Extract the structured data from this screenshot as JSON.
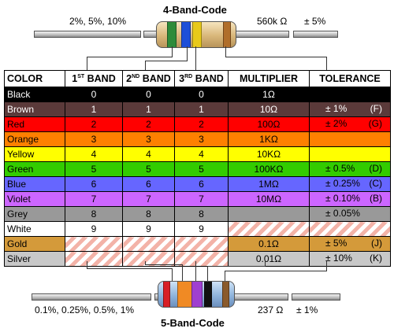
{
  "top": {
    "title": "4-Band-Code",
    "left_label": "2%, 5%, 10%",
    "value_label": "560k Ω",
    "tolerance_label": "± 5%",
    "bands": [
      "#2e8b3a",
      "#1d4fd8",
      "#e8c91a",
      "#b06e2a"
    ]
  },
  "bottom": {
    "title": "5-Band-Code",
    "left_label": "0.1%, 0.25%, 0.5%, 1%",
    "value_label": "237 Ω",
    "tolerance_label": "± 1%",
    "bands": [
      "#d81f26",
      "#f08a24",
      "#a040d0",
      "#111111",
      "#8a5a2b"
    ]
  },
  "table": {
    "headers": {
      "color": "COLOR",
      "band1_num": "1",
      "band1_sup": "ST",
      "band1_word": " BAND",
      "band2_num": "2",
      "band2_sup": "ND",
      "band2_word": " BAND",
      "band3_num": "3",
      "band3_sup": "RD",
      "band3_word": " BAND",
      "multiplier": "MULTIPLIER",
      "tolerance": "TOLERANCE"
    },
    "rows": [
      {
        "name": "Black",
        "bg": "#000000",
        "fg": "#ffffff",
        "b1": "0",
        "b2": "0",
        "b3": "0",
        "mult": "1Ω",
        "tol": "",
        "code": ""
      },
      {
        "name": "Brown",
        "bg": "#5b3a3a",
        "fg": "#ffffff",
        "b1": "1",
        "b2": "1",
        "b3": "1",
        "mult": "10Ω",
        "tol": "± 1%",
        "code": "(F)"
      },
      {
        "name": "Red",
        "bg": "#ff0000",
        "fg": "#000000",
        "b1": "2",
        "b2": "2",
        "b3": "2",
        "mult": "100Ω",
        "tol": "± 2%",
        "code": "(G)"
      },
      {
        "name": "Orange",
        "bg": "#ff8000",
        "fg": "#000000",
        "b1": "3",
        "b2": "3",
        "b3": "3",
        "mult": "1KΩ",
        "tol": "",
        "code": ""
      },
      {
        "name": "Yellow",
        "bg": "#ffff00",
        "fg": "#000000",
        "b1": "4",
        "b2": "4",
        "b3": "4",
        "mult": "10KΩ",
        "tol": "",
        "code": ""
      },
      {
        "name": "Green",
        "bg": "#33cc00",
        "fg": "#000000",
        "b1": "5",
        "b2": "5",
        "b3": "5",
        "mult": "100KΩ",
        "tol": "± 0.5%",
        "code": "(D)"
      },
      {
        "name": "Blue",
        "bg": "#6666ff",
        "fg": "#000000",
        "b1": "6",
        "b2": "6",
        "b3": "6",
        "mult": "1MΩ",
        "tol": "± 0.25%",
        "code": "(C)"
      },
      {
        "name": "Violet",
        "bg": "#cc66ff",
        "fg": "#000000",
        "b1": "7",
        "b2": "7",
        "b3": "7",
        "mult": "10MΩ",
        "tol": "± 0.10%",
        "code": "(B)"
      },
      {
        "name": "Grey",
        "bg": "#999999",
        "fg": "#000000",
        "b1": "8",
        "b2": "8",
        "b3": "8",
        "mult": "",
        "tol": "± 0.05%",
        "code": ""
      },
      {
        "name": "White",
        "bg": "#ffffff",
        "fg": "#000000",
        "b1": "9",
        "b2": "9",
        "b3": "9",
        "mult": "",
        "tol": "",
        "code": ""
      },
      {
        "name": "Gold",
        "bg": "#d49a3a",
        "fg": "#000000",
        "b1": "",
        "b2": "",
        "b3": "",
        "mult": "0.1Ω",
        "tol": "± 5%",
        "code": "(J)"
      },
      {
        "name": "Silver",
        "bg": "#c8c8c8",
        "fg": "#000000",
        "b1": "",
        "b2": "",
        "b3": "",
        "mult": "0.01Ω",
        "tol": "± 10%",
        "code": "(K)"
      }
    ]
  }
}
